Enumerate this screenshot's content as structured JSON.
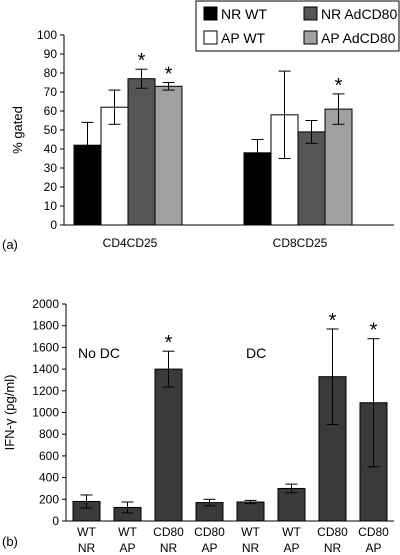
{
  "chart_data": [
    {
      "type": "bar",
      "panel_label": "(a)",
      "ylabel": "% gated",
      "ylim": [
        0,
        100
      ],
      "yticks": [
        0,
        10,
        20,
        30,
        40,
        50,
        60,
        70,
        80,
        90,
        100
      ],
      "categories": [
        "CD4CD25",
        "CD8CD25"
      ],
      "legend_position": "top-right",
      "series": [
        {
          "name": "NR WT",
          "color": "#000000",
          "values": [
            42,
            38
          ],
          "errors": [
            12,
            7
          ],
          "significant": [
            false,
            false
          ]
        },
        {
          "name": "AP WT",
          "color": "#ffffff",
          "values": [
            62,
            58
          ],
          "errors": [
            9,
            23
          ],
          "significant": [
            false,
            false
          ]
        },
        {
          "name": "NR AdCD80",
          "color": "#555555",
          "values": [
            77,
            49
          ],
          "errors": [
            5,
            6
          ],
          "significant": [
            true,
            false
          ]
        },
        {
          "name": "AP AdCD80",
          "color": "#a0a0a0",
          "values": [
            73,
            61
          ],
          "errors": [
            2,
            8
          ],
          "significant": [
            true,
            true
          ]
        }
      ],
      "significance_marker": "*"
    },
    {
      "type": "bar",
      "panel_label": "(b)",
      "ylabel": "IFN-γ (pg/ml)",
      "ylim": [
        0,
        2000
      ],
      "yticks": [
        0,
        200,
        400,
        600,
        800,
        1000,
        1200,
        1400,
        1600,
        1800,
        2000
      ],
      "group_labels": [
        "No DC",
        "DC"
      ],
      "categories": [
        {
          "top": "WT",
          "bottom": "NR"
        },
        {
          "top": "WT",
          "bottom": "AP"
        },
        {
          "top": "CD80",
          "bottom": "NR"
        },
        {
          "top": "CD80",
          "bottom": "AP"
        },
        {
          "top": "WT",
          "bottom": "NR"
        },
        {
          "top": "WT",
          "bottom": "AP"
        },
        {
          "top": "CD80",
          "bottom": "NR"
        },
        {
          "top": "CD80",
          "bottom": "AP"
        }
      ],
      "color": "#3a3a3a",
      "values": [
        180,
        125,
        1400,
        170,
        175,
        300,
        1330,
        1090
      ],
      "errors": [
        60,
        50,
        165,
        30,
        15,
        40,
        440,
        590
      ],
      "significant": [
        false,
        false,
        true,
        false,
        false,
        false,
        true,
        true
      ],
      "significance_marker": "*"
    }
  ]
}
